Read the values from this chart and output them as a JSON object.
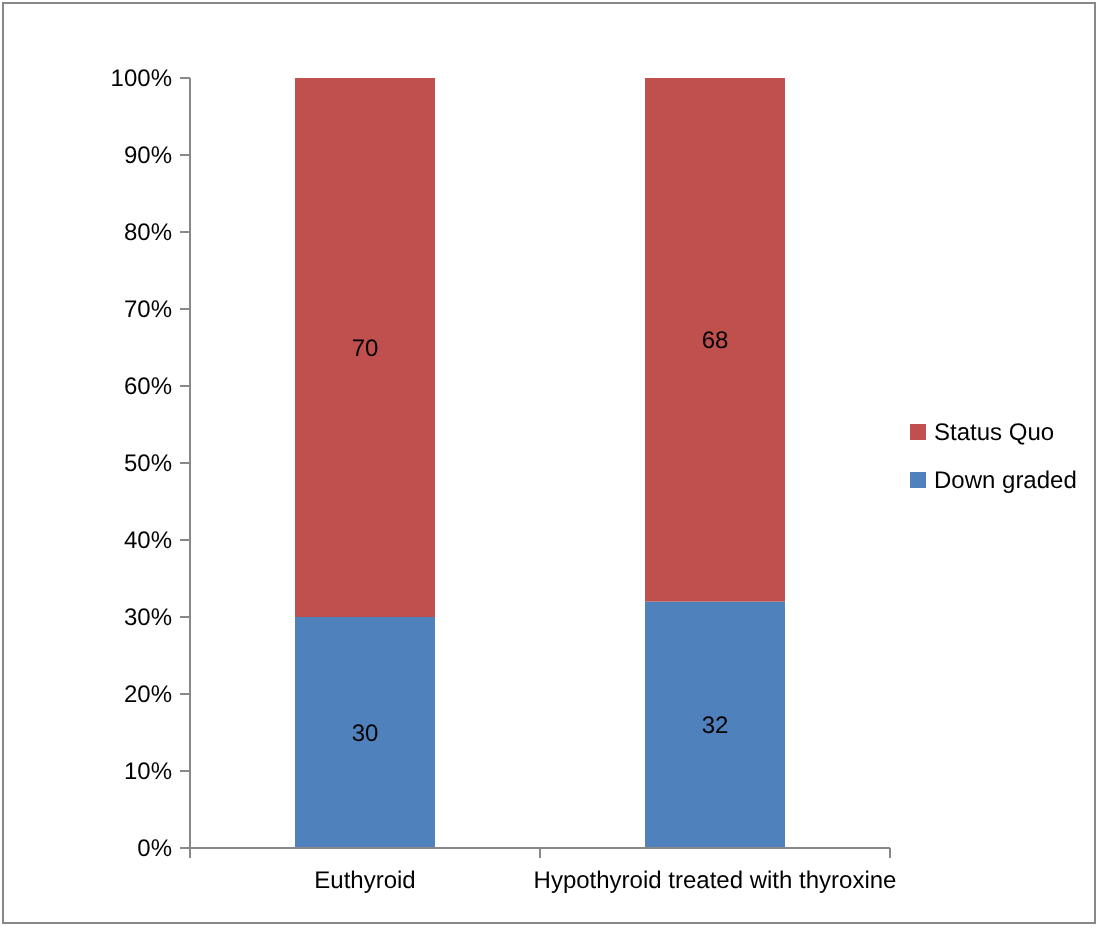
{
  "chart_data": {
    "type": "bar",
    "stacked": true,
    "data_labels": true,
    "legend": "right",
    "grid": false,
    "categories": [
      "Euthyroid",
      "Hypothyroid treated with thyroxine"
    ],
    "series": [
      {
        "name": "Down graded",
        "color": "#4f81bd",
        "values": [
          30,
          32
        ]
      },
      {
        "name": "Status Quo",
        "color": "#c0504d",
        "values": [
          70,
          68
        ]
      }
    ],
    "ylim": [
      0,
      100
    ],
    "yticks": [
      {
        "value": 0,
        "label": "0%"
      },
      {
        "value": 10,
        "label": "10%"
      },
      {
        "value": 20,
        "label": "20%"
      },
      {
        "value": 30,
        "label": "30%"
      },
      {
        "value": 40,
        "label": "40%"
      },
      {
        "value": 50,
        "label": "50%"
      },
      {
        "value": 60,
        "label": "60%"
      },
      {
        "value": 70,
        "label": "70%"
      },
      {
        "value": 80,
        "label": "80%"
      },
      {
        "value": 90,
        "label": "90%"
      },
      {
        "value": 100,
        "label": "100%"
      }
    ]
  }
}
